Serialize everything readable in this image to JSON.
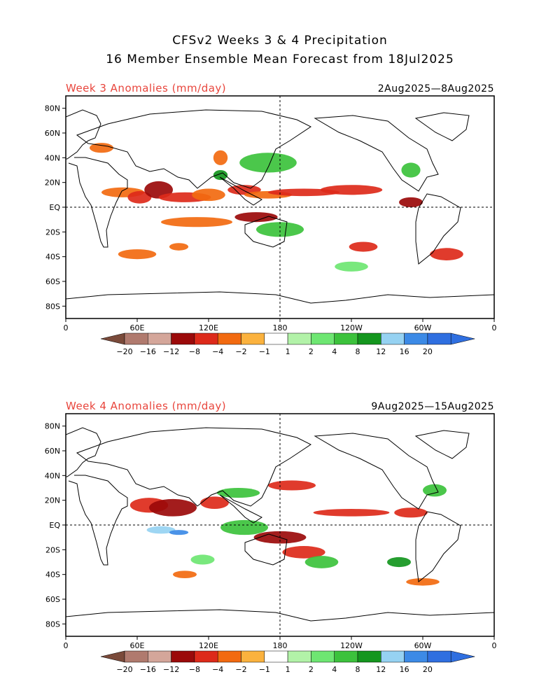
{
  "title_line1": "CFSv2 Weeks 3 & 4 Precipitation",
  "title_line2": "16 Member Ensemble Mean Forecast from 18Jul2025",
  "panels": [
    {
      "label": "Week 3 Anomalies (mm/day)",
      "dates": "2Aug2025—8Aug2025"
    },
    {
      "label": "Week 4 Anomalies (mm/day)",
      "dates": "9Aug2025—15Aug2025"
    }
  ],
  "lat_labels": [
    "80N",
    "60N",
    "40N",
    "20N",
    "EQ",
    "20S",
    "40S",
    "60S",
    "80S"
  ],
  "lon_labels": [
    "0",
    "60E",
    "120E",
    "180",
    "120W",
    "60W",
    "0"
  ],
  "colorbar": {
    "labels": [
      "−20",
      "−16",
      "−12",
      "−8",
      "−4",
      "−2",
      "−1",
      "1",
      "2",
      "4",
      "8",
      "12",
      "16",
      "20"
    ],
    "colors": [
      "#7a4a3a",
      "#b07a6e",
      "#d4a69a",
      "#9b0a0a",
      "#dd2a1a",
      "#f26a10",
      "#fbb23e",
      "#ffffff",
      "#b2f2a8",
      "#6ee672",
      "#3cc23c",
      "#14961e",
      "#96d2f2",
      "#3c8ae6",
      "#2f6fe0"
    ]
  }
}
